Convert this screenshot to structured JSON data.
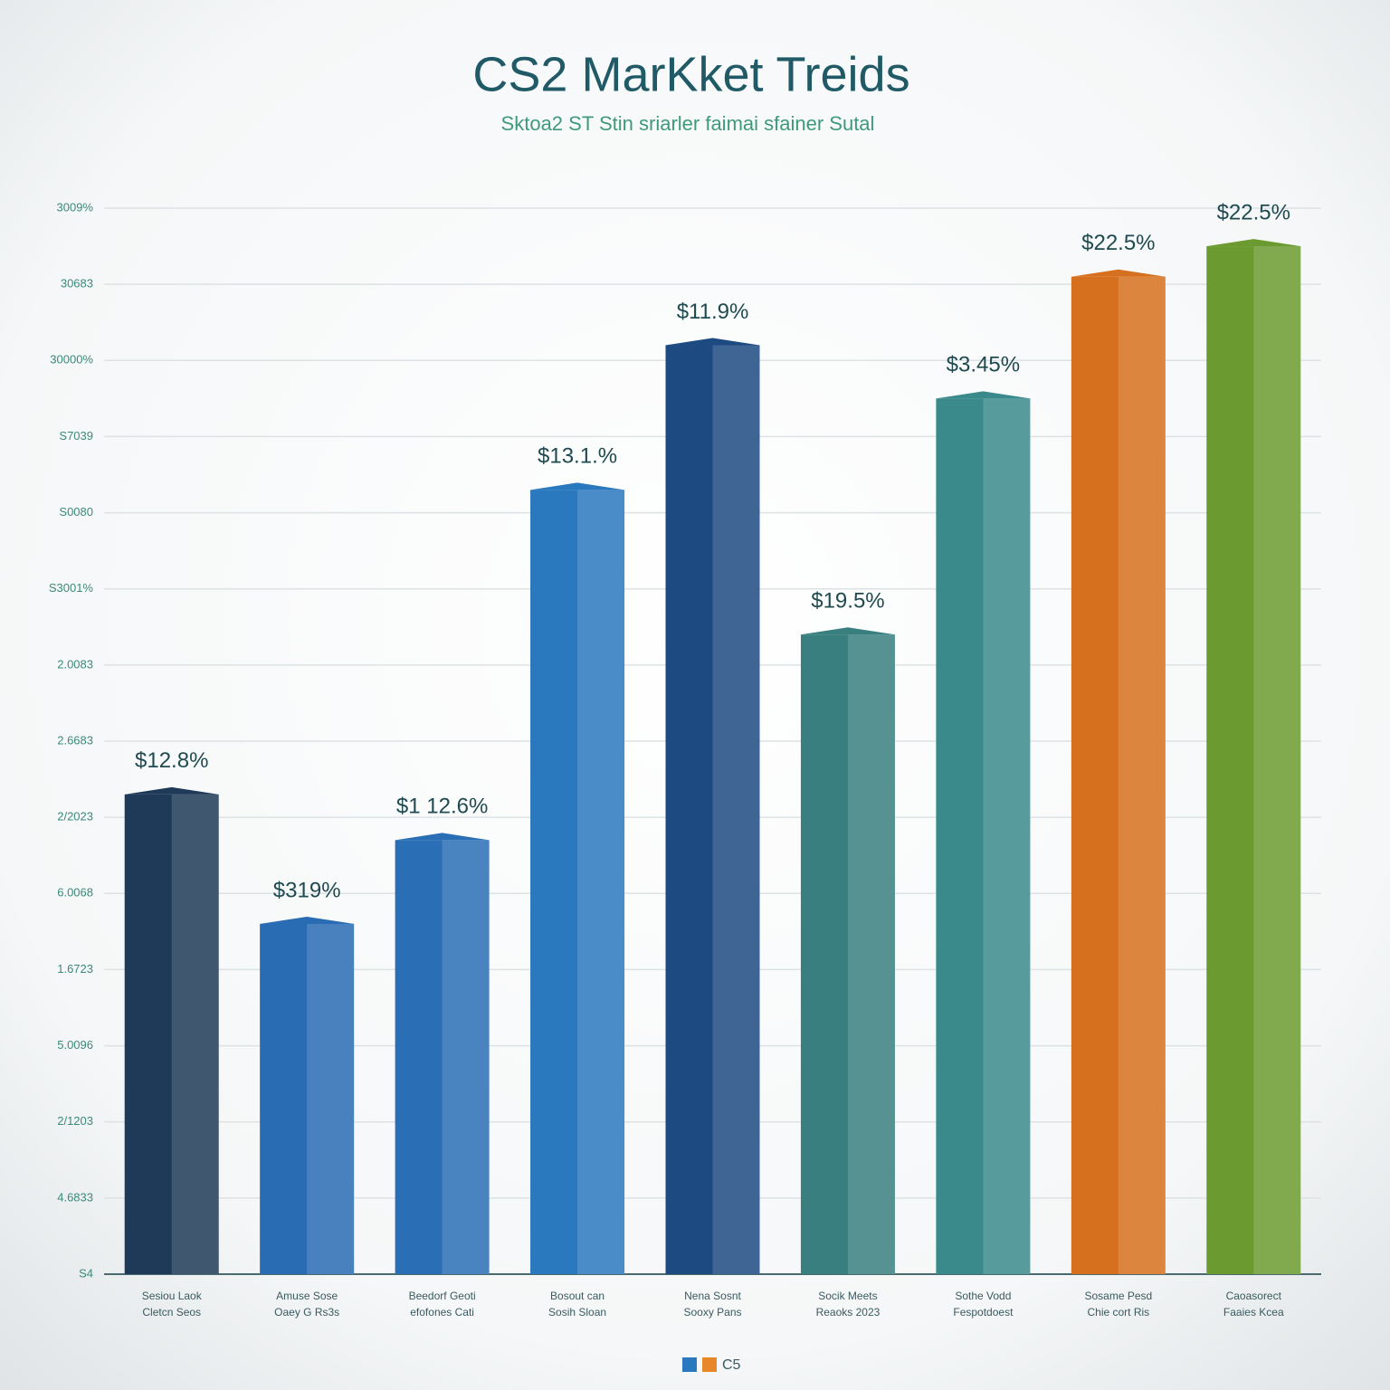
{
  "chart_data": {
    "type": "bar",
    "title": "CS2 MarKket Treids",
    "subtitle": "Sktoa2 ST Stin sriarler faimai sfainer Sutal",
    "categories": [
      [
        "Sesiou Laok",
        "Cletcn Seos"
      ],
      [
        "Amuse Sose",
        "Oaey G Rs3s"
      ],
      [
        "Beedorf Geoti",
        "efofones Cati"
      ],
      [
        "Bosout can",
        "Sosih Sloan"
      ],
      [
        "Nena Sosnt",
        "Sooxy Pans"
      ],
      [
        "Socik Meets",
        "Reaoks 2023"
      ],
      [
        "Sothe Vodd",
        "Fespotdoest"
      ],
      [
        "Sosame Pesd",
        "Chie cort Ris"
      ],
      [
        "Caoasorect",
        "Faaies Kcea"
      ]
    ],
    "values": [
      6.3,
      4.6,
      5.7,
      10.3,
      12.2,
      8.4,
      11.5,
      13.1,
      13.5
    ],
    "annotations": [
      "$12.8%",
      "$319%",
      "$1 12.6%",
      "$13.1.%",
      "$11.9%",
      "$19.5%",
      "$3.45%",
      "$22.5%",
      "$22.5%"
    ],
    "colors": [
      "#1f3a58",
      "#2a6cb3",
      "#2a6fb6",
      "#2a78be",
      "#1e4a82",
      "#3a7f80",
      "#3a8a8c",
      "#d6701e",
      "#6b9a30"
    ],
    "ylim": [
      0,
      14
    ],
    "yticks": [
      {
        "value": 0,
        "label": "S4"
      },
      {
        "value": 1,
        "label": "4.6833"
      },
      {
        "value": 2,
        "label": "2/1203"
      },
      {
        "value": 3,
        "label": "5.0096"
      },
      {
        "value": 4,
        "label": "1.6723"
      },
      {
        "value": 5,
        "label": "6.0068"
      },
      {
        "value": 6,
        "label": "2/2023"
      },
      {
        "value": 7,
        "label": "2.6683"
      },
      {
        "value": 8,
        "label": "2.0083"
      },
      {
        "value": 9,
        "label": "S3001%"
      },
      {
        "value": 10,
        "label": "S0080"
      },
      {
        "value": 11,
        "label": "S7039"
      },
      {
        "value": 12,
        "label": "30000%"
      },
      {
        "value": 13,
        "label": "30683"
      },
      {
        "value": 14,
        "label": "3009%"
      }
    ],
    "grid": true,
    "legend": {
      "colors": [
        "#2a78be",
        "#e8862a"
      ],
      "label": "C5"
    }
  }
}
